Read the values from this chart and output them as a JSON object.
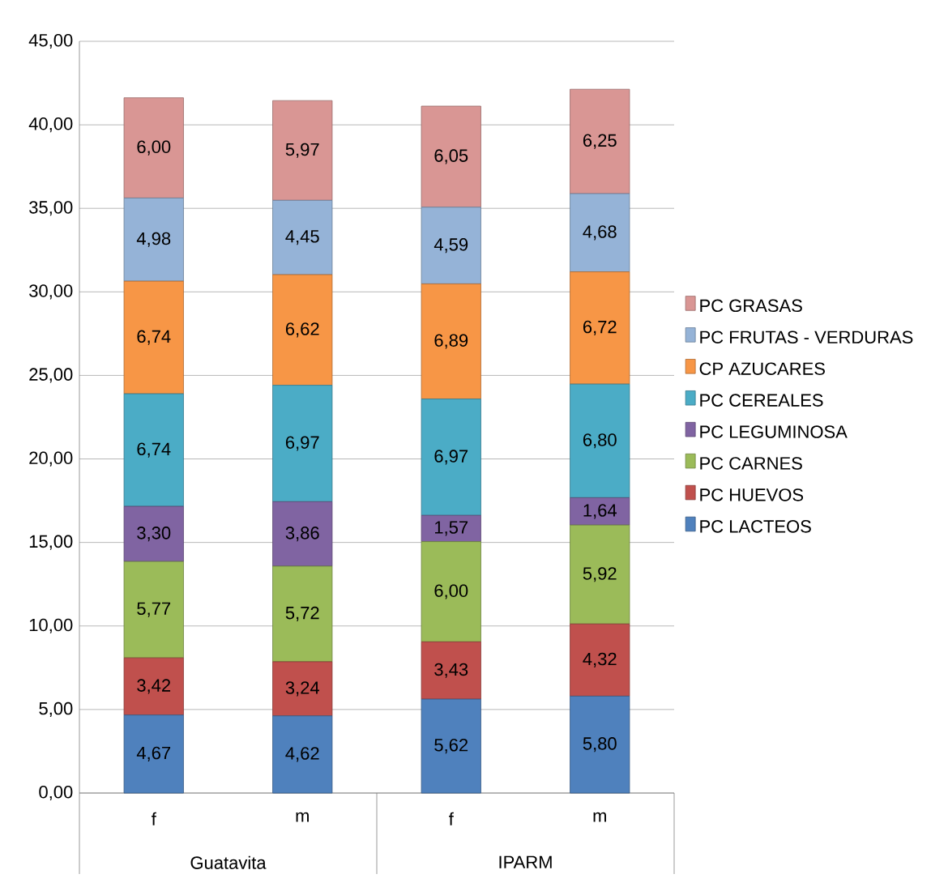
{
  "chart_data": {
    "type": "bar",
    "stacked": true,
    "categories": [
      "f",
      "m",
      "f",
      "m"
    ],
    "annotations": [
      "Guatavita",
      "IPARM"
    ],
    "series": [
      {
        "name": "PC LACTEOS",
        "color": "#4f81bd",
        "values": [
          4.67,
          4.62,
          5.62,
          5.8
        ],
        "value_labels": [
          "4,67",
          "4,62",
          "5,62",
          "5,80"
        ]
      },
      {
        "name": "PC HUEVOS",
        "color": "#c0504d",
        "values": [
          3.42,
          3.24,
          3.43,
          4.32
        ],
        "value_labels": [
          "3,42",
          "3,24",
          "3,43",
          "4,32"
        ]
      },
      {
        "name": "PC CARNES",
        "color": "#9bbb59",
        "values": [
          5.77,
          5.72,
          6.0,
          5.92
        ],
        "value_labels": [
          "5,77",
          "5,72",
          "6,00",
          "5,92"
        ]
      },
      {
        "name": "PC LEGUMINOSA",
        "color": "#8064a2",
        "values": [
          3.3,
          3.86,
          1.57,
          1.64
        ],
        "value_labels": [
          "3,30",
          "3,86",
          "1,57",
          "1,64"
        ]
      },
      {
        "name": "PC CEREALES",
        "color": "#4bacc6",
        "values": [
          6.74,
          6.97,
          6.97,
          6.8
        ],
        "value_labels": [
          "6,74",
          "6,97",
          "6,97",
          "6,80"
        ]
      },
      {
        "name": "CP AZUCARES",
        "color": "#f79646",
        "values": [
          6.74,
          6.62,
          6.89,
          6.72
        ],
        "value_labels": [
          "6,74",
          "6,62",
          "6,89",
          "6,72"
        ]
      },
      {
        "name": "PC FRUTAS - VERDURAS",
        "color": "#95b3d7",
        "values": [
          4.98,
          4.45,
          4.59,
          4.68
        ],
        "value_labels": [
          "4,98",
          "4,45",
          "4,59",
          "4,68"
        ]
      },
      {
        "name": "PC GRASAS",
        "color": "#d99694",
        "values": [
          6.0,
          5.97,
          6.05,
          6.25
        ],
        "value_labels": [
          "6,00",
          "5,97",
          "6,05",
          "6,25"
        ]
      }
    ],
    "ylim": [
      0,
      45
    ],
    "yticks": [
      {
        "value": 0,
        "label": "0,00"
      },
      {
        "value": 5,
        "label": "5,00"
      },
      {
        "value": 10,
        "label": "10,00"
      },
      {
        "value": 15,
        "label": "15,00"
      },
      {
        "value": 20,
        "label": "20,00"
      },
      {
        "value": 25,
        "label": "25,00"
      },
      {
        "value": 30,
        "label": "30,00"
      },
      {
        "value": 35,
        "label": "35,00"
      },
      {
        "value": 40,
        "label": "40,00"
      },
      {
        "value": 45,
        "label": "45,00"
      }
    ],
    "grid": "y",
    "legend": "right"
  }
}
